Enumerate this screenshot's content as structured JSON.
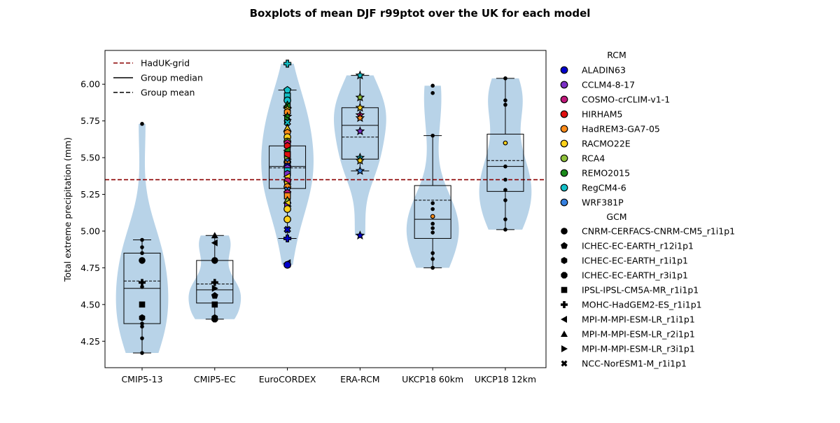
{
  "chart_data": {
    "type": "boxplot",
    "title": "Boxplots of mean DJF r99ptot over the UK for each model",
    "xlabel": "",
    "ylabel": "Total extreme precipitation (mm)",
    "ylim": [
      4.07,
      6.23
    ],
    "yticks": [
      "4.25",
      "4.50",
      "4.75",
      "5.00",
      "5.25",
      "5.50",
      "5.75",
      "6.00"
    ],
    "reference_line": {
      "name": "HadUK-grid",
      "value": 5.35,
      "color": "#8b0000"
    },
    "main_legend": {
      "placement": "upper-left",
      "entries": [
        {
          "label": "HadUK-grid",
          "style": "dashed",
          "color": "#8b0000"
        },
        {
          "label": "Group median",
          "style": "solid",
          "color": "#000000"
        },
        {
          "label": "Group mean",
          "style": "dashed",
          "color": "#000000"
        }
      ]
    },
    "groups": [
      {
        "name": "CMIP5-13",
        "whisker_low": 4.17,
        "q1": 4.37,
        "median": 4.61,
        "mean": 4.66,
        "q3": 4.85,
        "whisker_high": 4.94,
        "violin_min": 4.17,
        "violin_max": 5.73,
        "points": [
          {
            "v": 5.73,
            "m": "dot"
          },
          {
            "v": 4.94,
            "m": "dot"
          },
          {
            "v": 4.89,
            "m": "dot"
          },
          {
            "v": 4.85,
            "m": "dot"
          },
          {
            "v": 4.8,
            "m": "circle"
          },
          {
            "v": 4.65,
            "m": "plus"
          },
          {
            "v": 4.62,
            "m": "dot"
          },
          {
            "v": 4.5,
            "m": "square"
          },
          {
            "v": 4.41,
            "m": "hexagon"
          },
          {
            "v": 4.37,
            "m": "dot"
          },
          {
            "v": 4.35,
            "m": "dot"
          },
          {
            "v": 4.27,
            "m": "dot"
          },
          {
            "v": 4.17,
            "m": "dot"
          }
        ]
      },
      {
        "name": "CMIP5-EC",
        "whisker_low": 4.4,
        "q1": 4.51,
        "median": 4.6,
        "mean": 4.64,
        "q3": 4.8,
        "whisker_high": 4.97,
        "violin_min": 4.4,
        "violin_max": 4.97,
        "points": [
          {
            "v": 4.97,
            "m": "triangle-up"
          },
          {
            "v": 4.92,
            "m": "triangle-left"
          },
          {
            "v": 4.8,
            "m": "circle"
          },
          {
            "v": 4.65,
            "m": "plus"
          },
          {
            "v": 4.61,
            "m": "triangle-right"
          },
          {
            "v": 4.56,
            "m": "pentagon"
          },
          {
            "v": 4.5,
            "m": "square"
          },
          {
            "v": 4.41,
            "m": "hexagon"
          },
          {
            "v": 4.4,
            "m": "octagon"
          }
        ]
      },
      {
        "name": "EuroCORDEX",
        "whisker_low": 4.95,
        "q1": 5.29,
        "median": 5.44,
        "mean": 5.43,
        "q3": 5.58,
        "whisker_high": 5.96,
        "violin_min": 4.77,
        "violin_max": 6.14,
        "points": [
          {
            "v": 6.14,
            "m": "plus",
            "c": "RegCM4-6"
          },
          {
            "v": 5.96,
            "m": "pentagon",
            "c": "RegCM4-6"
          },
          {
            "v": 5.92,
            "m": "square",
            "c": "RegCM4-6"
          },
          {
            "v": 5.89,
            "m": "circle",
            "c": "RegCM4-6"
          },
          {
            "v": 5.86,
            "m": "triangle-up",
            "c": "REMO2015"
          },
          {
            "v": 5.85,
            "m": "triangle-left",
            "c": "REMO2015"
          },
          {
            "v": 5.83,
            "m": "star",
            "c": "RACMO22E"
          },
          {
            "v": 5.81,
            "m": "hexagon",
            "c": "HadREM3-GA7-05"
          },
          {
            "v": 5.78,
            "m": "star",
            "c": "REMO2015"
          },
          {
            "v": 5.76,
            "m": "triangle-right",
            "c": "REMO2015"
          },
          {
            "v": 5.74,
            "m": "x",
            "c": "RegCM4-6"
          },
          {
            "v": 5.7,
            "m": "triangle-up",
            "c": "RACMO22E"
          },
          {
            "v": 5.67,
            "m": "pentagon",
            "c": "HadREM3-GA7-05"
          },
          {
            "v": 5.64,
            "m": "circle",
            "c": "RACMO22E"
          },
          {
            "v": 5.61,
            "m": "circle",
            "c": "RCA4"
          },
          {
            "v": 5.6,
            "m": "pentagon",
            "c": "COSMO-crCLIM-v1-1"
          },
          {
            "v": 5.58,
            "m": "hexagon",
            "c": "HIRHAM5"
          },
          {
            "v": 5.55,
            "m": "triangle-left",
            "c": "REMO2015"
          },
          {
            "v": 5.52,
            "m": "square",
            "c": "HIRHAM5"
          },
          {
            "v": 5.49,
            "m": "triangle-right",
            "c": "RCA4"
          },
          {
            "v": 5.47,
            "m": "circle",
            "c": "WRF381P"
          },
          {
            "v": 5.46,
            "m": "x",
            "c": "HadREM3-GA7-05"
          },
          {
            "v": 5.44,
            "m": "circle",
            "c": "ALADIN63"
          },
          {
            "v": 5.43,
            "m": "pentagon",
            "c": "CCLM4-8-17"
          },
          {
            "v": 5.41,
            "m": "square",
            "c": "RegCM4-6"
          },
          {
            "v": 5.39,
            "m": "hexagon",
            "c": "CCLM4-8-17"
          },
          {
            "v": 5.37,
            "m": "triangle-left",
            "c": "RACMO22E"
          },
          {
            "v": 5.34,
            "m": "circle",
            "c": "COSMO-crCLIM-v1-1"
          },
          {
            "v": 5.32,
            "m": "triangle-right",
            "c": "RACMO22E"
          },
          {
            "v": 5.3,
            "m": "circle",
            "c": "HadREM3-GA7-05"
          },
          {
            "v": 5.28,
            "m": "x",
            "c": "WRF381P"
          },
          {
            "v": 5.26,
            "m": "pentagon",
            "c": "COSMO-crCLIM-v1-1"
          },
          {
            "v": 5.24,
            "m": "square",
            "c": "HadREM3-GA7-05"
          },
          {
            "v": 5.21,
            "m": "triangle-up",
            "c": "RCA4"
          },
          {
            "v": 5.19,
            "m": "triangle-left",
            "c": "RACMO22E"
          },
          {
            "v": 5.17,
            "m": "triangle-right",
            "c": "CCLM4-8-17"
          },
          {
            "v": 5.15,
            "m": "circle",
            "c": "RACMO22E"
          },
          {
            "v": 5.08,
            "m": "circle",
            "c": "RACMO22E"
          },
          {
            "v": 5.01,
            "m": "x",
            "c": "ALADIN63"
          },
          {
            "v": 4.95,
            "m": "plus",
            "c": "ALADIN63"
          },
          {
            "v": 4.78,
            "m": "triangle-left",
            "c": "ALADIN63"
          },
          {
            "v": 4.77,
            "m": "circle",
            "c": "ALADIN63"
          }
        ]
      },
      {
        "name": "ERA-RCM",
        "whisker_low": 5.41,
        "q1": 5.49,
        "median": 5.72,
        "mean": 5.64,
        "q3": 5.84,
        "whisker_high": 6.06,
        "violin_min": 4.97,
        "violin_max": 6.06,
        "points": [
          {
            "v": 6.06,
            "m": "star",
            "c": "RegCM4-6"
          },
          {
            "v": 5.91,
            "m": "star",
            "c": "RCA4"
          },
          {
            "v": 5.84,
            "m": "star",
            "c": "RACMO22E"
          },
          {
            "v": 5.79,
            "m": "star",
            "c": "COSMO-crCLIM-v1-1"
          },
          {
            "v": 5.77,
            "m": "star",
            "c": "HadREM3-GA7-05"
          },
          {
            "v": 5.68,
            "m": "star",
            "c": "CCLM4-8-17"
          },
          {
            "v": 5.5,
            "m": "star",
            "c": "RegCM4-6"
          },
          {
            "v": 5.48,
            "m": "star",
            "c": "RACMO22E"
          },
          {
            "v": 5.41,
            "m": "star",
            "c": "WRF381P"
          },
          {
            "v": 4.97,
            "m": "star",
            "c": "ALADIN63"
          }
        ]
      },
      {
        "name": "UKCP18 60km",
        "whisker_low": 4.75,
        "q1": 4.95,
        "median": 5.08,
        "mean": 5.21,
        "q3": 5.31,
        "whisker_high": 5.65,
        "violin_min": 4.75,
        "violin_max": 5.99,
        "points": [
          {
            "v": 5.99,
            "m": "dot"
          },
          {
            "v": 5.94,
            "m": "dot"
          },
          {
            "v": 5.65,
            "m": "dot"
          },
          {
            "v": 5.19,
            "m": "dot"
          },
          {
            "v": 5.15,
            "m": "dot"
          },
          {
            "v": 5.1,
            "m": "dot",
            "c": "HadREM3-GA7-05"
          },
          {
            "v": 5.05,
            "m": "dot"
          },
          {
            "v": 5.02,
            "m": "dot"
          },
          {
            "v": 4.99,
            "m": "dot"
          },
          {
            "v": 4.85,
            "m": "dot"
          },
          {
            "v": 4.81,
            "m": "dot"
          },
          {
            "v": 4.75,
            "m": "dot"
          }
        ]
      },
      {
        "name": "UKCP18 12km",
        "whisker_low": 5.01,
        "q1": 5.27,
        "median": 5.44,
        "mean": 5.48,
        "q3": 5.66,
        "whisker_high": 6.04,
        "violin_min": 5.01,
        "violin_max": 6.04,
        "points": [
          {
            "v": 6.04,
            "m": "dot"
          },
          {
            "v": 5.89,
            "m": "dot"
          },
          {
            "v": 5.86,
            "m": "dot"
          },
          {
            "v": 5.6,
            "m": "dot",
            "c": "RACMO22E"
          },
          {
            "v": 5.44,
            "m": "dot"
          },
          {
            "v": 5.35,
            "m": "dot"
          },
          {
            "v": 5.28,
            "m": "dot"
          },
          {
            "v": 5.21,
            "m": "dot"
          },
          {
            "v": 5.08,
            "m": "dot"
          },
          {
            "v": 5.01,
            "m": "dot"
          }
        ]
      }
    ],
    "rcm_legend": {
      "title": "RCM",
      "entries": [
        {
          "label": "ALADIN63",
          "color": "#0000cc"
        },
        {
          "label": "CCLM4-8-17",
          "color": "#7b2fc4"
        },
        {
          "label": "COSMO-crCLIM-v1-1",
          "color": "#c0187a"
        },
        {
          "label": "HIRHAM5",
          "color": "#e01010"
        },
        {
          "label": "HadREM3-GA7-05",
          "color": "#ff8c1a"
        },
        {
          "label": "RACMO22E",
          "color": "#ffd11a"
        },
        {
          "label": "RCA4",
          "color": "#8fc13a"
        },
        {
          "label": "REMO2015",
          "color": "#1a8a1a"
        },
        {
          "label": "RegCM4-6",
          "color": "#14c0c8"
        },
        {
          "label": "WRF381P",
          "color": "#3580e0"
        }
      ]
    },
    "gcm_legend": {
      "title": "GCM",
      "entries": [
        {
          "label": "CNRM-CERFACS-CNRM-CM5_r1i1p1",
          "marker": "circle"
        },
        {
          "label": "ICHEC-EC-EARTH_r12i1p1",
          "marker": "pentagon"
        },
        {
          "label": "ICHEC-EC-EARTH_r1i1p1",
          "marker": "hexagon"
        },
        {
          "label": "ICHEC-EC-EARTH_r3i1p1",
          "marker": "octagon"
        },
        {
          "label": "IPSL-IPSL-CM5A-MR_r1i1p1",
          "marker": "square"
        },
        {
          "label": "MOHC-HadGEM2-ES_r1i1p1",
          "marker": "plus"
        },
        {
          "label": "MPI-M-MPI-ESM-LR_r1i1p1",
          "marker": "triangle-left"
        },
        {
          "label": "MPI-M-MPI-ESM-LR_r2i1p1",
          "marker": "triangle-up"
        },
        {
          "label": "MPI-M-MPI-ESM-LR_r3i1p1",
          "marker": "triangle-right"
        },
        {
          "label": "NCC-NorESM1-M_r1i1p1",
          "marker": "x"
        }
      ]
    },
    "colors": {
      "violin": "#b8d3e8",
      "box": "#000000"
    }
  }
}
